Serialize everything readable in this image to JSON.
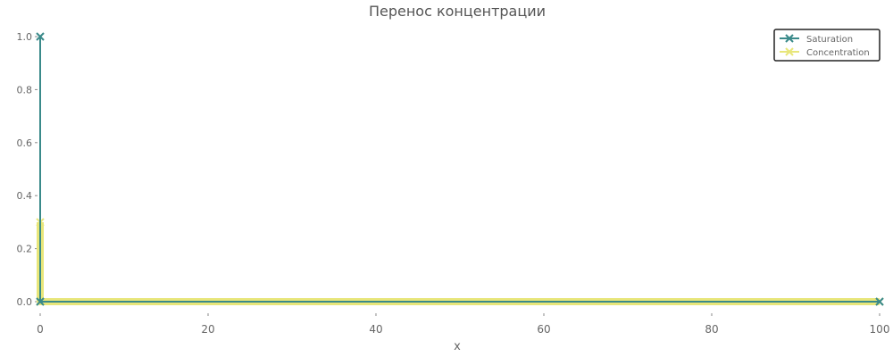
{
  "chart_data": {
    "type": "line",
    "title": "Перенос концентрации",
    "xlabel": "x",
    "ylabel": "",
    "xlim": [
      0,
      100
    ],
    "ylim": [
      0,
      1.0
    ],
    "x_ticks": [
      0,
      20,
      40,
      60,
      80,
      100
    ],
    "y_ticks": [
      0.0,
      0.2,
      0.4,
      0.6,
      0.8,
      1.0
    ],
    "x_tick_labels": [
      "0",
      "20",
      "40",
      "60",
      "80",
      "100"
    ],
    "y_tick_labels": [
      "0.0",
      "0.2",
      "0.4",
      "0.6",
      "0.8",
      "1.0"
    ],
    "legend_position": "top-right",
    "grid": false,
    "series": [
      {
        "name": "Saturation",
        "color": "#3a8a8a",
        "marker": "x",
        "points": [
          [
            0,
            1.0
          ],
          [
            0,
            0
          ],
          [
            100,
            0
          ]
        ]
      },
      {
        "name": "Concentration",
        "color": "#e8e67a",
        "marker": "x",
        "points": [
          [
            0,
            0.3
          ],
          [
            0,
            0
          ],
          [
            100,
            0
          ]
        ]
      }
    ]
  }
}
